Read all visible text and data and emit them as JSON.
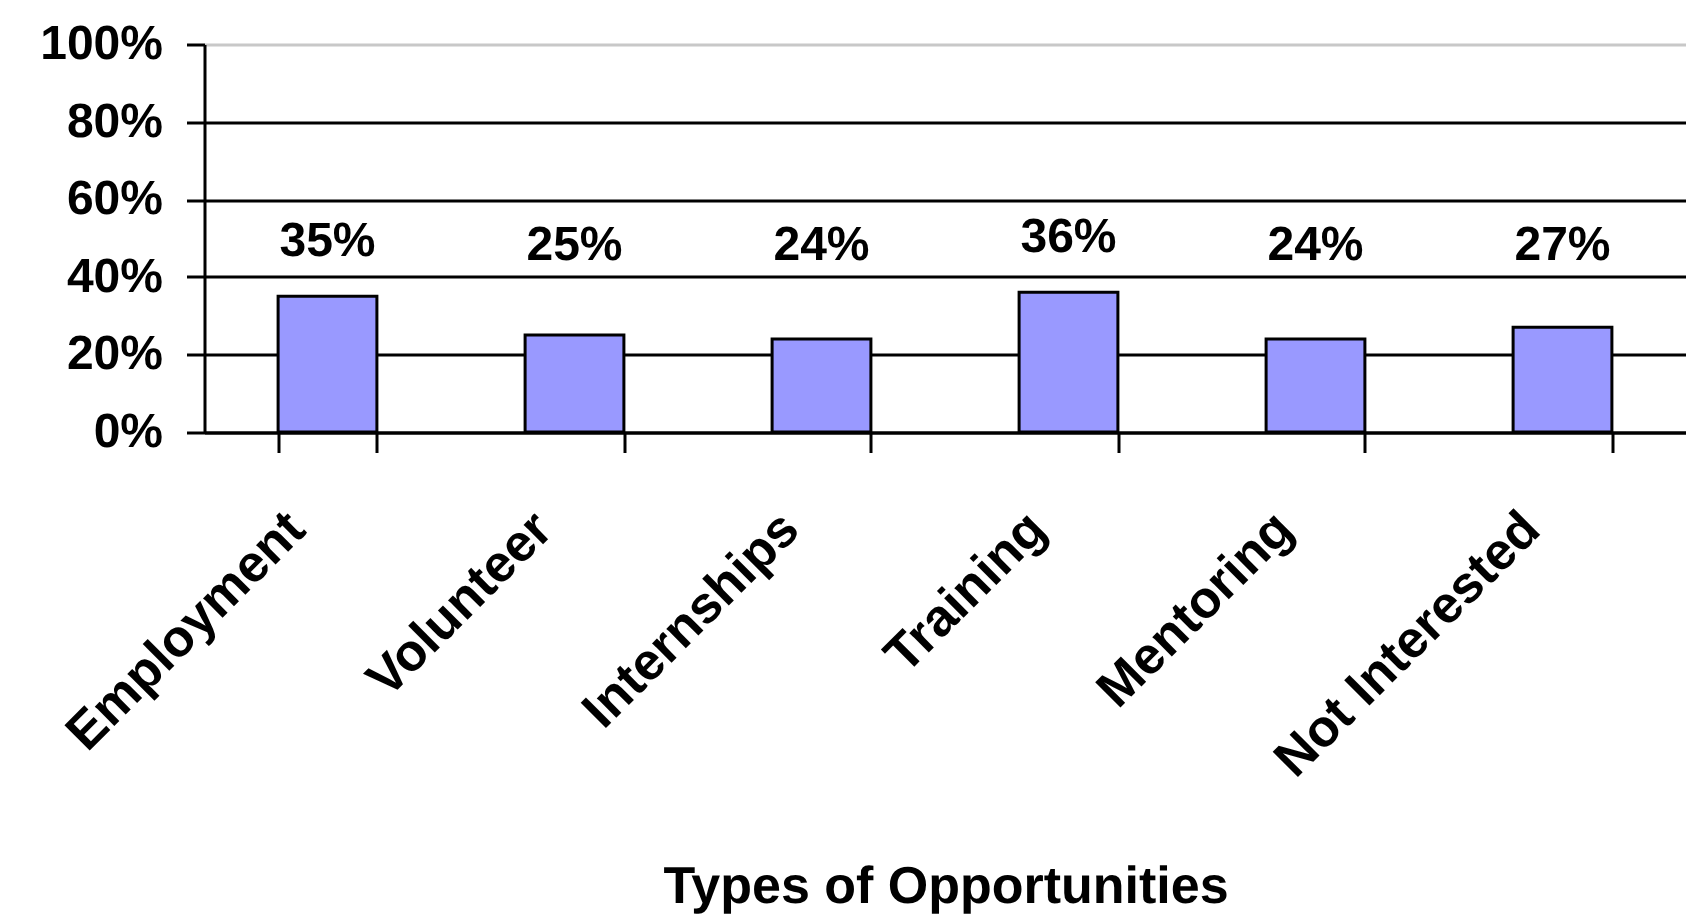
{
  "chart_data": {
    "type": "bar",
    "xlabel": "Types of Opportunities",
    "categories": [
      "Employment",
      "Volunteer",
      "Internships",
      "Training",
      "Mentoring",
      "Not Interested"
    ],
    "values": [
      35,
      25,
      24,
      36,
      24,
      27
    ],
    "color": "#9999ff",
    "value_labels": [
      "35%",
      "25%",
      "24%",
      "36%",
      "24%",
      "27%"
    ],
    "ylim": [
      0,
      100
    ],
    "yticks": [
      {
        "value": 0,
        "label": "0%"
      },
      {
        "value": 20,
        "label": "20%"
      },
      {
        "value": 40,
        "label": "40%"
      },
      {
        "value": 60,
        "label": "60%"
      },
      {
        "value": 80,
        "label": "80%"
      },
      {
        "value": 100,
        "label": "100%"
      }
    ],
    "grid": "y"
  }
}
